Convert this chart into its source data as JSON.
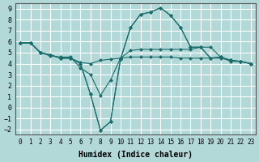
{
  "xlabel": "Humidex (Indice chaleur)",
  "ylabel": "",
  "background_color": "#b2d8d8",
  "grid_color": "#ffffff",
  "line_color": "#1a6b6b",
  "xlim": [
    -0.5,
    23.5
  ],
  "ylim": [
    -2.5,
    9.5
  ],
  "xticks": [
    0,
    1,
    2,
    3,
    4,
    5,
    6,
    7,
    8,
    9,
    10,
    11,
    12,
    13,
    14,
    15,
    16,
    17,
    18,
    19,
    20,
    21,
    22,
    23
  ],
  "yticks": [
    -2,
    -1,
    0,
    1,
    2,
    3,
    4,
    5,
    6,
    7,
    8,
    9
  ],
  "lines": [
    {
      "x": [
        0,
        1,
        2,
        3,
        4,
        5,
        6,
        7,
        8,
        9,
        10,
        11,
        12,
        13,
        14,
        15,
        16,
        17,
        18,
        19,
        20,
        21,
        22,
        23
      ],
      "y": [
        5.9,
        5.9,
        5.0,
        4.7,
        4.6,
        4.6,
        3.6,
        3.0,
        1.1,
        2.5,
        4.5,
        5.2,
        5.3,
        5.3,
        5.3,
        5.3,
        5.3,
        5.3,
        5.5,
        5.5,
        4.6,
        4.2,
        4.2,
        4.0
      ]
    },
    {
      "x": [
        0,
        1,
        2,
        3,
        4,
        5,
        6,
        7,
        8,
        9,
        10,
        11,
        12,
        13,
        14,
        15,
        16,
        17,
        18,
        19,
        20,
        21,
        22,
        23
      ],
      "y": [
        5.9,
        5.9,
        5.0,
        4.8,
        4.5,
        4.5,
        4.0,
        1.2,
        -2.1,
        -1.3,
        4.4,
        7.3,
        8.5,
        8.7,
        9.1,
        8.4,
        7.3,
        5.5,
        5.5,
        4.5,
        4.6,
        4.3,
        4.2,
        4.0
      ]
    },
    {
      "x": [
        0,
        1,
        2,
        3,
        4,
        5,
        6,
        7,
        8,
        9,
        10,
        11,
        12,
        13,
        14,
        15,
        16,
        17,
        18,
        19,
        20,
        21,
        22,
        23
      ],
      "y": [
        5.9,
        5.9,
        5.0,
        4.8,
        4.5,
        4.5,
        4.0,
        1.2,
        -2.1,
        -1.3,
        4.4,
        7.3,
        8.5,
        8.7,
        9.1,
        8.4,
        7.3,
        5.5,
        5.5,
        4.5,
        4.6,
        4.3,
        4.2,
        4.0
      ]
    },
    {
      "x": [
        0,
        1,
        2,
        3,
        4,
        5,
        6,
        7,
        8,
        9,
        10,
        11,
        12,
        13,
        14,
        15,
        16,
        17,
        18,
        19,
        20,
        21,
        22,
        23
      ],
      "y": [
        5.9,
        5.9,
        5.0,
        4.8,
        4.5,
        4.5,
        4.1,
        4.0,
        4.3,
        4.4,
        4.5,
        4.6,
        4.6,
        4.6,
        4.6,
        4.6,
        4.5,
        4.5,
        4.5,
        4.5,
        4.5,
        4.3,
        4.2,
        4.0
      ]
    }
  ]
}
